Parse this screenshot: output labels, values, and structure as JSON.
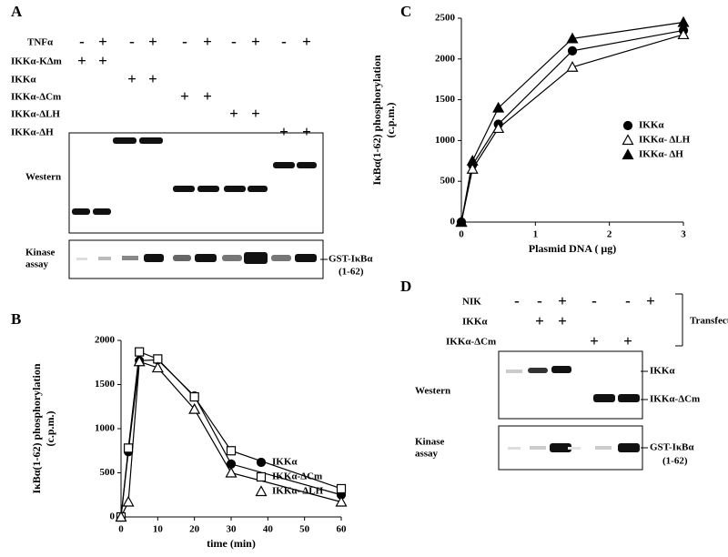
{
  "panel_labels": [
    "A",
    "B",
    "C",
    "D"
  ],
  "panel_a": {
    "rows": [
      {
        "label": "TNFα",
        "signs": [
          "-",
          "+",
          "-",
          "+",
          "-",
          "+",
          "-",
          "+",
          "-",
          "+"
        ]
      },
      {
        "label": "IKKα-KΔm",
        "signs": [
          "+",
          "+",
          null,
          null,
          null,
          null,
          null,
          null,
          null,
          null
        ]
      },
      {
        "label": "IKKα",
        "signs": [
          null,
          null,
          "+",
          "+",
          null,
          null,
          null,
          null,
          null,
          null
        ]
      },
      {
        "label": "IKKα-ΔCm",
        "signs": [
          null,
          null,
          null,
          null,
          "+",
          "+",
          null,
          null,
          null,
          null
        ]
      },
      {
        "label": "IKKα-ΔLH",
        "signs": [
          null,
          null,
          null,
          null,
          null,
          null,
          "+",
          "+",
          null,
          null
        ]
      },
      {
        "label": "IKKα-ΔH",
        "signs": [
          null,
          null,
          null,
          null,
          null,
          null,
          null,
          null,
          "+",
          "+"
        ]
      }
    ],
    "western_label": "Western",
    "kinase_label": [
      "Kinase",
      "assay"
    ],
    "kinase_band_label": [
      "GST-IκBα",
      "(1-62)"
    ]
  },
  "panel_d": {
    "rows": [
      {
        "label": "NIK",
        "signs": [
          "-",
          "-",
          "+",
          "-",
          "-",
          "+"
        ]
      },
      {
        "label": "IKKα",
        "signs": [
          null,
          "+",
          "+",
          null,
          null,
          null
        ]
      },
      {
        "label": "IKKα-ΔCm",
        "signs": [
          null,
          null,
          null,
          "+",
          "+",
          null
        ]
      }
    ],
    "bracket_label": "Transfection",
    "western_label": "Western",
    "western_band_labels": [
      "IKKα",
      "IKKα-ΔCm"
    ],
    "kinase_label": [
      "Kinase",
      "assay"
    ],
    "kinase_band_label": [
      "GST-IκBα",
      "(1-62)"
    ]
  },
  "chart_data": [
    {
      "type": "line",
      "xlabel": "time (min)",
      "ylabel": [
        "IκBα(1-62) phosphorylation",
        "(c.p.m.)"
      ],
      "x": [
        0,
        2,
        5,
        10,
        20,
        30,
        60
      ],
      "xlim": [
        0,
        60
      ],
      "xticks": [
        0,
        10,
        20,
        30,
        40,
        50,
        60
      ],
      "ylim": [
        0,
        2000
      ],
      "yticks": [
        0,
        500,
        1000,
        1500,
        2000
      ],
      "series": [
        {
          "name": "IKKα",
          "color": "#000000",
          "marker": "circle-filled",
          "values": [
            0,
            740,
            1770,
            1780,
            1370,
            600,
            250
          ]
        },
        {
          "name": "IKKα-ΔCm",
          "color": "#000000",
          "marker": "square-open",
          "values": [
            0,
            780,
            1870,
            1790,
            1360,
            750,
            320
          ]
        },
        {
          "name": "IKKα- ΔLH",
          "color": "#000000",
          "marker": "triangle-open",
          "values": [
            0,
            170,
            1760,
            1690,
            1220,
            500,
            170
          ]
        }
      ]
    },
    {
      "type": "line",
      "xlabel": "Plasmid DNA ( μg)",
      "ylabel": [
        "IκBα(1-62) phosphorylation",
        "(c.p.m.)"
      ],
      "x": [
        0,
        0.15,
        0.5,
        1.5,
        3
      ],
      "xlim": [
        0,
        3
      ],
      "xticks": [
        0,
        1,
        2,
        3
      ],
      "ylim": [
        0,
        2500
      ],
      "yticks": [
        0,
        500,
        1000,
        1500,
        2000,
        2500
      ],
      "series": [
        {
          "name": "IKKα",
          "color": "#000000",
          "marker": "circle-filled",
          "values": [
            0,
            700,
            1200,
            2100,
            2350
          ]
        },
        {
          "name": "IKKα- ΔLH",
          "color": "#000000",
          "marker": "triangle-open",
          "values": [
            0,
            650,
            1150,
            1900,
            2300
          ]
        },
        {
          "name": "IKKα- ΔH",
          "color": "#000000",
          "marker": "triangle-filled",
          "values": [
            0,
            750,
            1400,
            2250,
            2450
          ]
        }
      ]
    }
  ]
}
